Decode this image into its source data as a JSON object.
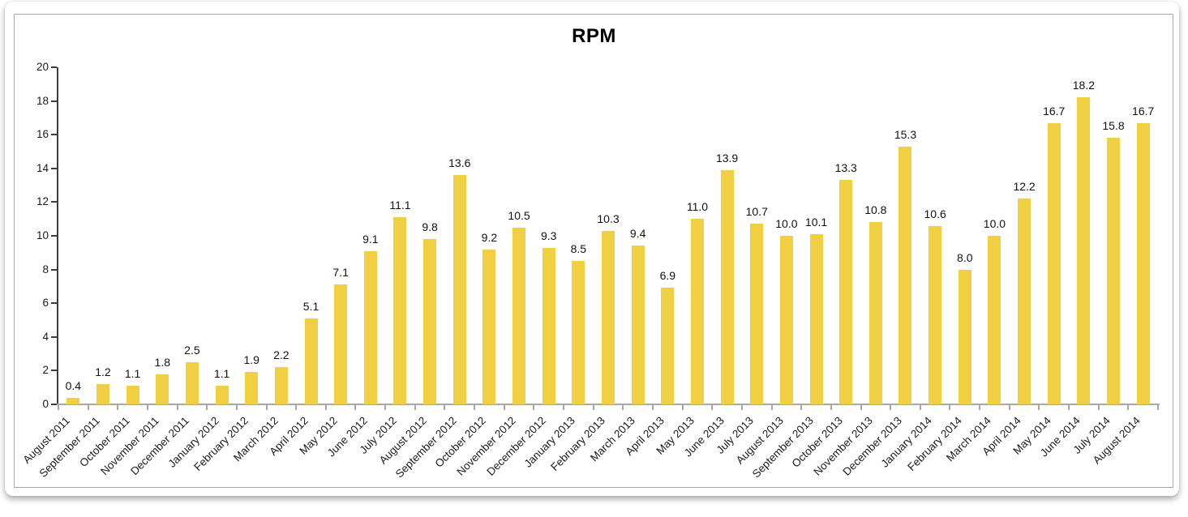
{
  "chart_data": {
    "type": "bar",
    "title": "RPM",
    "categories": [
      "August 2011",
      "September 2011",
      "October 2011",
      "November 2011",
      "December 2011",
      "January 2012",
      "February 2012",
      "March 2012",
      "April 2012",
      "May 2012",
      "June 2012",
      "July 2012",
      "August 2012",
      "September 2012",
      "October 2012",
      "November 2012",
      "December 2012",
      "January 2013",
      "February 2013",
      "March 2013",
      "April 2013",
      "May 2013",
      "June 2013",
      "July 2013",
      "August 2013",
      "September 2013",
      "October 2013",
      "November 2013",
      "December 2013",
      "January 2014",
      "February 2014",
      "March 2014",
      "April 2014",
      "May 2014",
      "June 2014",
      "July 2014",
      "August 2014"
    ],
    "values": [
      0.4,
      1.2,
      1.1,
      1.8,
      2.5,
      1.1,
      1.9,
      2.2,
      5.1,
      7.1,
      9.1,
      11.1,
      9.8,
      13.6,
      9.2,
      10.5,
      9.3,
      8.5,
      10.3,
      9.4,
      6.9,
      11.0,
      13.9,
      10.7,
      10.0,
      10.1,
      13.3,
      10.8,
      15.3,
      10.6,
      8.0,
      10.0,
      12.2,
      16.7,
      18.2,
      15.8,
      16.7
    ],
    "xlabel": "",
    "ylabel": "",
    "ylim": [
      0,
      20
    ],
    "ytick_step": 2,
    "bar_color": "#F1CF43",
    "grid": "off",
    "legend": "none",
    "value_labels": "one-decimal above each bar",
    "x_label_rotation_deg": 45
  }
}
